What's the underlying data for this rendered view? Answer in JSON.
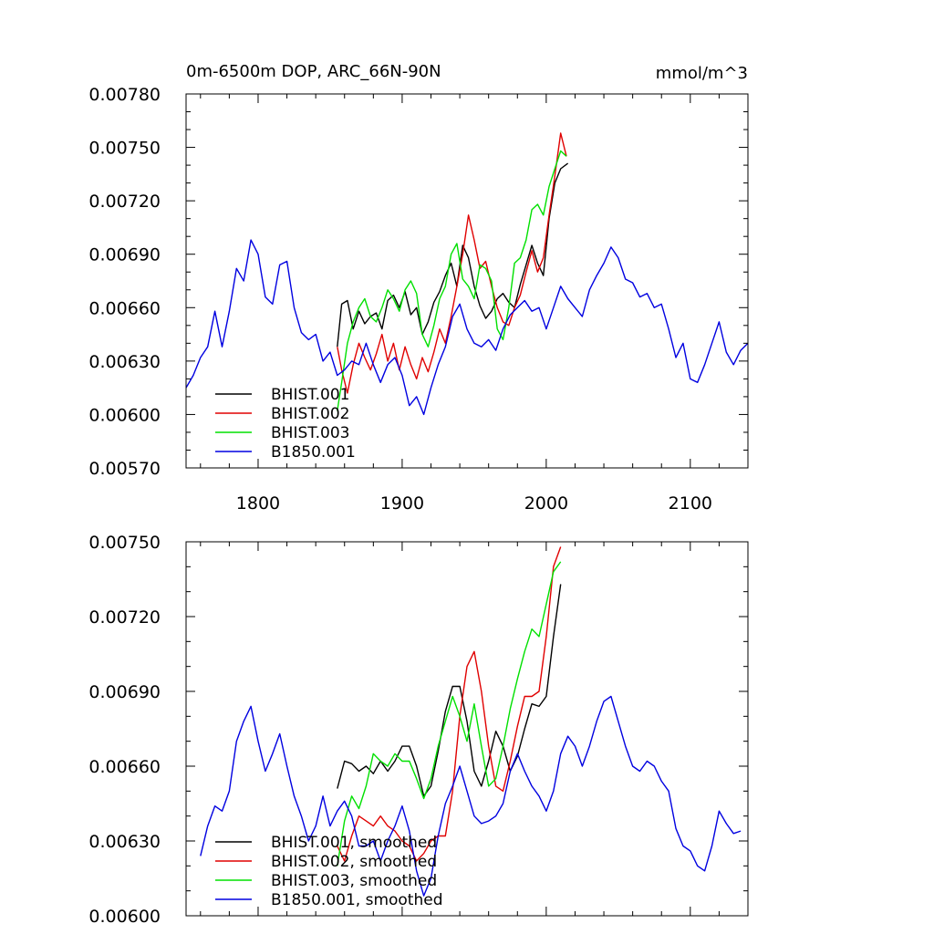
{
  "figure": {
    "title_left": "0m-6500m DOP, ARC_66N-90N",
    "title_right": "mmol/m^3"
  },
  "colors": {
    "BHIST.001": "#000000",
    "BHIST.002": "#e00000",
    "BHIST.003": "#00e000",
    "B1850.001": "#0000e0",
    "axis": "#000000"
  },
  "chart_data": [
    {
      "type": "line",
      "title": "0m-6500m DOP, ARC_66N-90N",
      "units": "mmol/m^3",
      "xlim": [
        1750,
        2140
      ],
      "ylim": [
        0.0057,
        0.0078
      ],
      "xticks": [
        1800,
        1900,
        2000,
        2100
      ],
      "xtick_labels": [
        "1800",
        "1900",
        "2000",
        "2100"
      ],
      "yticks": [
        0.0057,
        0.006,
        0.0063,
        0.0066,
        0.0069,
        0.0072,
        0.0075,
        0.0078
      ],
      "ytick_labels": [
        "0.00570",
        "0.00600",
        "0.00630",
        "0.00660",
        "0.00690",
        "0.00720",
        "0.00750",
        "0.00780"
      ],
      "legend": [
        "BHIST.001",
        "BHIST.002",
        "BHIST.003",
        "B1850.001"
      ],
      "legend_position": "lower-left",
      "series": [
        {
          "name": "BHIST.001",
          "x": [
            1855,
            1858,
            1862,
            1866,
            1870,
            1874,
            1878,
            1882,
            1886,
            1890,
            1894,
            1898,
            1902,
            1906,
            1910,
            1914,
            1918,
            1922,
            1926,
            1930,
            1934,
            1938,
            1942,
            1946,
            1950,
            1954,
            1958,
            1962,
            1966,
            1970,
            1974,
            1978,
            1982,
            1986,
            1990,
            1994,
            1998,
            2002,
            2006,
            2010,
            2015
          ],
          "values": [
            0.00638,
            0.00662,
            0.00664,
            0.00648,
            0.00658,
            0.00651,
            0.00655,
            0.00657,
            0.00648,
            0.00664,
            0.00667,
            0.0066,
            0.00669,
            0.00656,
            0.0066,
            0.00645,
            0.00652,
            0.00663,
            0.00669,
            0.00678,
            0.00685,
            0.00672,
            0.00695,
            0.00688,
            0.00672,
            0.00661,
            0.00654,
            0.00658,
            0.00665,
            0.00668,
            0.00663,
            0.0066,
            0.00673,
            0.00684,
            0.00695,
            0.00685,
            0.00678,
            0.0071,
            0.0073,
            0.00738,
            0.00741
          ]
        },
        {
          "name": "BHIST.002",
          "x": [
            1855,
            1858,
            1862,
            1866,
            1870,
            1874,
            1878,
            1882,
            1886,
            1890,
            1894,
            1898,
            1902,
            1906,
            1910,
            1914,
            1918,
            1922,
            1926,
            1930,
            1934,
            1938,
            1942,
            1946,
            1950,
            1954,
            1958,
            1962,
            1966,
            1970,
            1974,
            1978,
            1982,
            1986,
            1990,
            1994,
            1998,
            2002,
            2006,
            2010,
            2014
          ],
          "values": [
            0.00638,
            0.00625,
            0.00612,
            0.00628,
            0.0064,
            0.00632,
            0.00625,
            0.00634,
            0.00645,
            0.0063,
            0.0064,
            0.00625,
            0.00638,
            0.00628,
            0.0062,
            0.00632,
            0.00624,
            0.00635,
            0.00648,
            0.0064,
            0.00655,
            0.00672,
            0.0069,
            0.00712,
            0.00698,
            0.00682,
            0.00686,
            0.00672,
            0.0066,
            0.00652,
            0.0065,
            0.0066,
            0.00667,
            0.0068,
            0.00692,
            0.0068,
            0.00688,
            0.00712,
            0.00734,
            0.00758,
            0.00745
          ]
        },
        {
          "name": "BHIST.003",
          "x": [
            1855,
            1858,
            1862,
            1866,
            1870,
            1874,
            1878,
            1882,
            1886,
            1890,
            1894,
            1898,
            1902,
            1906,
            1910,
            1914,
            1918,
            1922,
            1926,
            1930,
            1934,
            1938,
            1942,
            1946,
            1950,
            1954,
            1958,
            1962,
            1966,
            1970,
            1974,
            1978,
            1982,
            1986,
            1990,
            1994,
            1998,
            2002,
            2006,
            2010,
            2014
          ],
          "values": [
            0.00602,
            0.00618,
            0.0064,
            0.00652,
            0.0066,
            0.00665,
            0.00655,
            0.00652,
            0.0066,
            0.0067,
            0.00665,
            0.00658,
            0.0067,
            0.00675,
            0.00668,
            0.00645,
            0.00638,
            0.0065,
            0.00665,
            0.00672,
            0.0069,
            0.00696,
            0.00676,
            0.00672,
            0.00665,
            0.00684,
            0.00682,
            0.00675,
            0.00648,
            0.00642,
            0.0066,
            0.00685,
            0.00688,
            0.00698,
            0.00715,
            0.00718,
            0.00712,
            0.00728,
            0.00738,
            0.00748,
            0.00745
          ]
        },
        {
          "name": "B1850.001",
          "x": [
            1750,
            1755,
            1760,
            1765,
            1770,
            1775,
            1780,
            1785,
            1790,
            1795,
            1800,
            1805,
            1810,
            1815,
            1820,
            1825,
            1830,
            1835,
            1840,
            1845,
            1850,
            1855,
            1860,
            1865,
            1870,
            1875,
            1880,
            1885,
            1890,
            1895,
            1900,
            1905,
            1910,
            1915,
            1920,
            1925,
            1930,
            1935,
            1940,
            1945,
            1950,
            1955,
            1960,
            1965,
            1970,
            1975,
            1980,
            1985,
            1990,
            1995,
            2000,
            2005,
            2010,
            2015,
            2020,
            2025,
            2030,
            2035,
            2040,
            2045,
            2050,
            2055,
            2060,
            2065,
            2070,
            2075,
            2080,
            2085,
            2090,
            2095,
            2100,
            2105,
            2110,
            2115,
            2120,
            2125,
            2130,
            2135,
            2140
          ],
          "values": [
            0.00615,
            0.00622,
            0.00632,
            0.00638,
            0.00658,
            0.00638,
            0.00658,
            0.00682,
            0.00675,
            0.00698,
            0.0069,
            0.00666,
            0.00662,
            0.00684,
            0.00686,
            0.0066,
            0.00646,
            0.00642,
            0.00645,
            0.0063,
            0.00635,
            0.00622,
            0.00625,
            0.0063,
            0.00628,
            0.0064,
            0.00628,
            0.00618,
            0.00628,
            0.00632,
            0.00622,
            0.00605,
            0.0061,
            0.006,
            0.00615,
            0.00628,
            0.00638,
            0.00655,
            0.00662,
            0.00648,
            0.0064,
            0.00638,
            0.00642,
            0.00636,
            0.00648,
            0.00656,
            0.0066,
            0.00664,
            0.00658,
            0.0066,
            0.00648,
            0.0066,
            0.00672,
            0.00665,
            0.0066,
            0.00655,
            0.0067,
            0.00678,
            0.00685,
            0.00694,
            0.00688,
            0.00676,
            0.00674,
            0.00666,
            0.00668,
            0.0066,
            0.00662,
            0.00648,
            0.00632,
            0.0064,
            0.0062,
            0.00618,
            0.00628,
            0.0064,
            0.00652,
            0.00635,
            0.00628,
            0.00636,
            0.0064
          ]
        }
      ]
    },
    {
      "type": "line",
      "xlim": [
        1750,
        2140
      ],
      "ylim": [
        0.006,
        0.0075
      ],
      "xticks": [
        1800,
        1900,
        2000,
        2100
      ],
      "yticks": [
        0.006,
        0.0063,
        0.0066,
        0.0069,
        0.0072,
        0.0075
      ],
      "ytick_labels": [
        "0.00600",
        "0.00630",
        "0.00660",
        "0.00690",
        "0.00720",
        "0.00750"
      ],
      "legend": [
        "BHIST.001, smoothed",
        "BHIST.002, smoothed",
        "BHIST.003, smoothed",
        "B1850.001, smoothed"
      ],
      "legend_position": "lower-left",
      "series": [
        {
          "name": "BHIST.001, smoothed",
          "x": [
            1855,
            1860,
            1865,
            1870,
            1875,
            1880,
            1885,
            1890,
            1895,
            1900,
            1905,
            1910,
            1915,
            1920,
            1925,
            1930,
            1935,
            1940,
            1945,
            1950,
            1955,
            1960,
            1965,
            1970,
            1975,
            1980,
            1985,
            1990,
            1995,
            2000,
            2005,
            2010
          ],
          "values": [
            0.00651,
            0.00662,
            0.00661,
            0.00658,
            0.0066,
            0.00657,
            0.00662,
            0.00658,
            0.00662,
            0.00668,
            0.00668,
            0.0066,
            0.00648,
            0.00652,
            0.00666,
            0.00682,
            0.00692,
            0.00692,
            0.00678,
            0.00658,
            0.00652,
            0.00662,
            0.00674,
            0.00668,
            0.00658,
            0.00664,
            0.00675,
            0.00685,
            0.00684,
            0.00688,
            0.00712,
            0.00733
          ]
        },
        {
          "name": "BHIST.002, smoothed",
          "x": [
            1855,
            1860,
            1865,
            1870,
            1875,
            1880,
            1885,
            1890,
            1895,
            1900,
            1905,
            1910,
            1915,
            1920,
            1925,
            1930,
            1935,
            1940,
            1945,
            1950,
            1955,
            1960,
            1965,
            1970,
            1975,
            1980,
            1985,
            1990,
            1995,
            2000,
            2005,
            2010
          ],
          "values": [
            0.00628,
            0.00622,
            0.00632,
            0.0064,
            0.00638,
            0.00636,
            0.0064,
            0.00636,
            0.00634,
            0.0063,
            0.00628,
            0.00622,
            0.00625,
            0.0063,
            0.00632,
            0.00632,
            0.0065,
            0.0068,
            0.007,
            0.00706,
            0.0069,
            0.00668,
            0.00652,
            0.0065,
            0.00662,
            0.00676,
            0.00688,
            0.00688,
            0.0069,
            0.00712,
            0.0074,
            0.00748
          ]
        },
        {
          "name": "BHIST.003, smoothed",
          "x": [
            1855,
            1860,
            1865,
            1870,
            1875,
            1880,
            1885,
            1890,
            1895,
            1900,
            1905,
            1910,
            1915,
            1920,
            1925,
            1930,
            1935,
            1940,
            1945,
            1950,
            1955,
            1960,
            1965,
            1970,
            1975,
            1980,
            1985,
            1990,
            1995,
            2000,
            2005,
            2010
          ],
          "values": [
            0.0062,
            0.00638,
            0.00648,
            0.00643,
            0.00652,
            0.00665,
            0.00662,
            0.0066,
            0.00665,
            0.00662,
            0.00662,
            0.00655,
            0.00647,
            0.00655,
            0.00668,
            0.00678,
            0.00688,
            0.0068,
            0.0067,
            0.00685,
            0.00668,
            0.00652,
            0.00655,
            0.00668,
            0.00683,
            0.00695,
            0.00706,
            0.00715,
            0.00712,
            0.00725,
            0.00738,
            0.00742
          ]
        },
        {
          "name": "B1850.001, smoothed",
          "x": [
            1760,
            1765,
            1770,
            1775,
            1780,
            1785,
            1790,
            1795,
            1800,
            1805,
            1810,
            1815,
            1820,
            1825,
            1830,
            1835,
            1840,
            1845,
            1850,
            1855,
            1860,
            1865,
            1870,
            1875,
            1880,
            1885,
            1890,
            1895,
            1900,
            1905,
            1910,
            1915,
            1920,
            1925,
            1930,
            1935,
            1940,
            1945,
            1950,
            1955,
            1960,
            1965,
            1970,
            1975,
            1980,
            1985,
            1990,
            1995,
            2000,
            2005,
            2010,
            2015,
            2020,
            2025,
            2030,
            2035,
            2040,
            2045,
            2050,
            2055,
            2060,
            2065,
            2070,
            2075,
            2080,
            2085,
            2090,
            2095,
            2100,
            2105,
            2110,
            2115,
            2120,
            2125,
            2130,
            2135
          ],
          "values": [
            0.00624,
            0.00636,
            0.00644,
            0.00642,
            0.0065,
            0.0067,
            0.00678,
            0.00684,
            0.0067,
            0.00658,
            0.00665,
            0.00673,
            0.0066,
            0.00648,
            0.0064,
            0.0063,
            0.00636,
            0.00648,
            0.00636,
            0.00642,
            0.00646,
            0.0064,
            0.00628,
            0.00628,
            0.0063,
            0.00622,
            0.0063,
            0.00636,
            0.00644,
            0.00634,
            0.00618,
            0.00608,
            0.00615,
            0.00632,
            0.00645,
            0.00652,
            0.0066,
            0.0065,
            0.0064,
            0.00637,
            0.00638,
            0.0064,
            0.00645,
            0.00658,
            0.00665,
            0.00658,
            0.00652,
            0.00648,
            0.00642,
            0.0065,
            0.00665,
            0.00672,
            0.00668,
            0.0066,
            0.00668,
            0.00678,
            0.00686,
            0.00688,
            0.00678,
            0.00668,
            0.0066,
            0.00658,
            0.00662,
            0.0066,
            0.00654,
            0.0065,
            0.00635,
            0.00628,
            0.00626,
            0.0062,
            0.00618,
            0.00628,
            0.00642,
            0.00637,
            0.00633,
            0.00634
          ]
        }
      ]
    }
  ]
}
